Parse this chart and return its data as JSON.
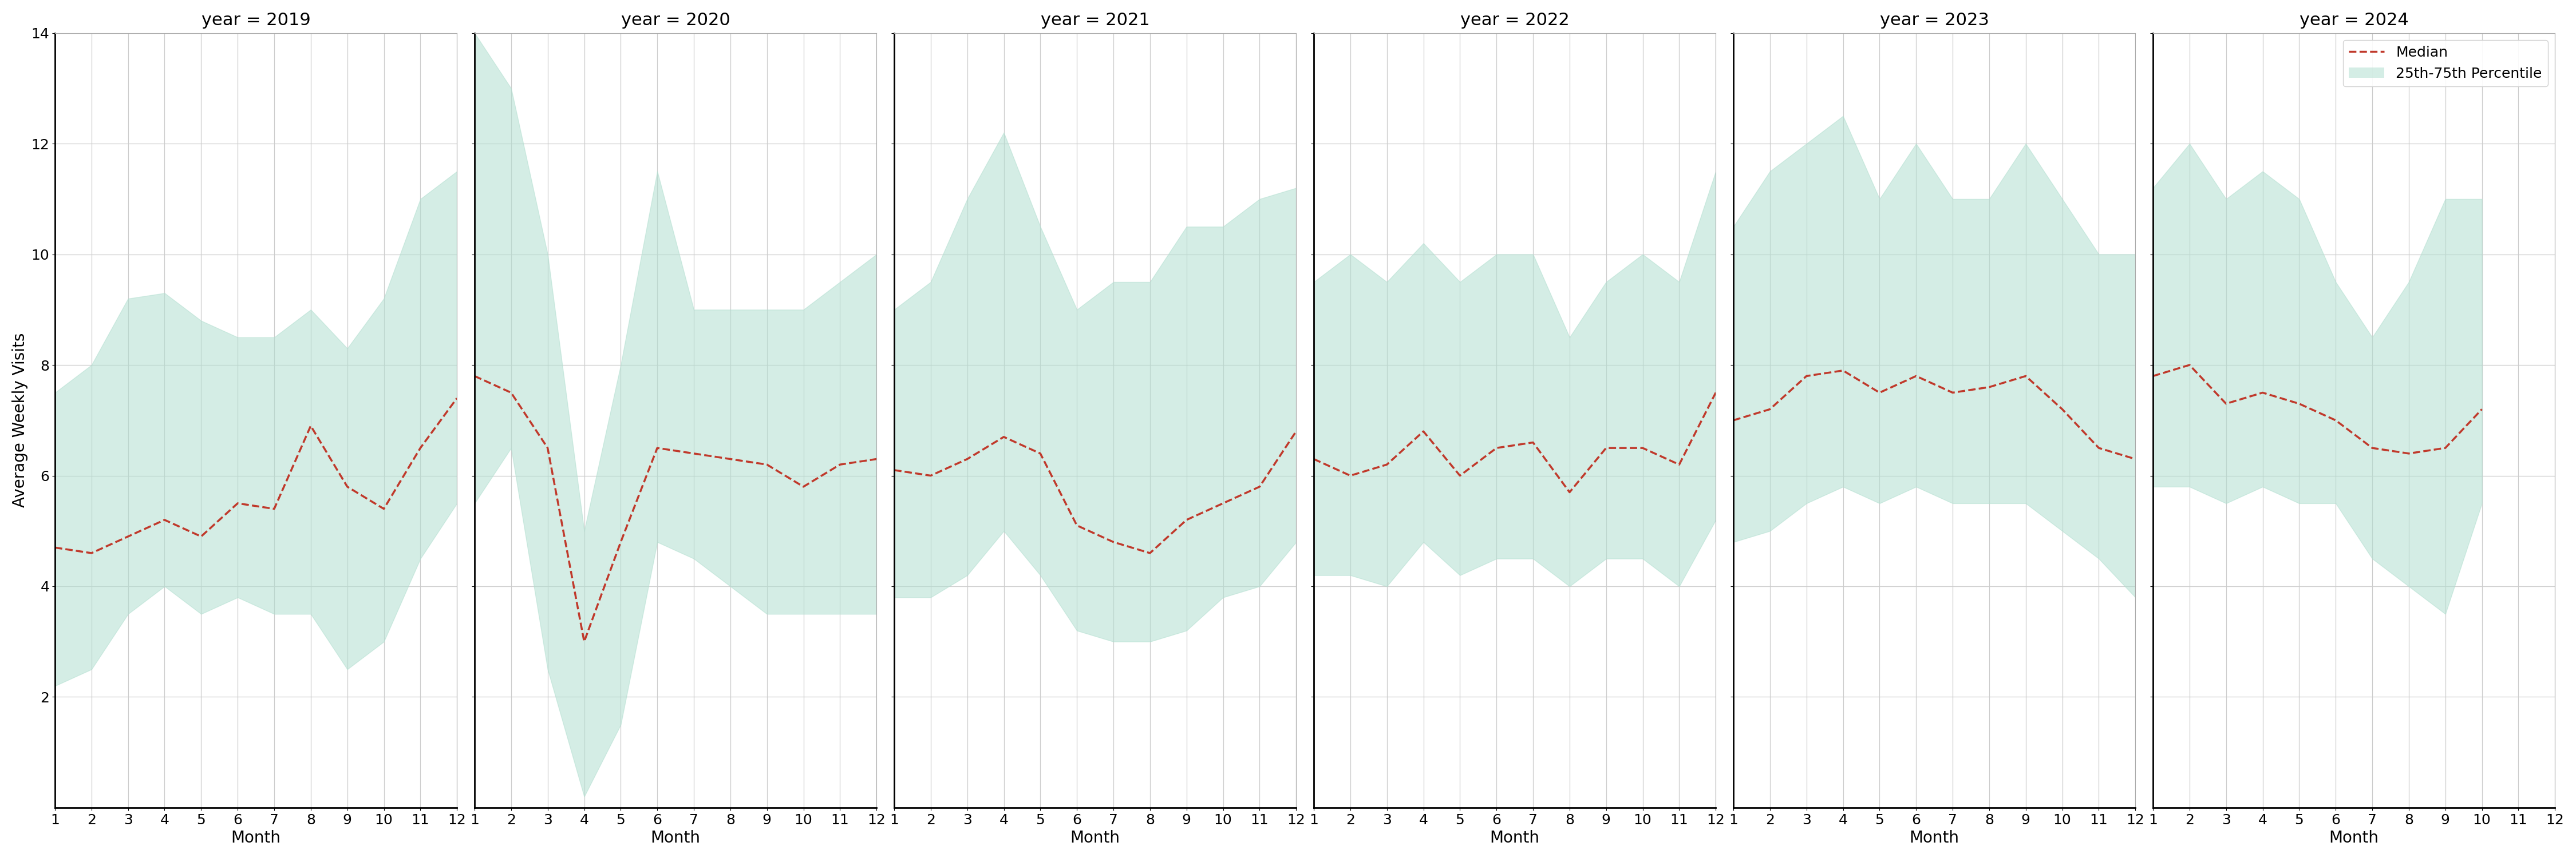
{
  "years": [
    2019,
    2020,
    2021,
    2022,
    2023,
    2024
  ],
  "months": {
    "2019": [
      1,
      2,
      3,
      4,
      5,
      6,
      7,
      8,
      9,
      10,
      11,
      12
    ],
    "2020": [
      1,
      2,
      3,
      4,
      5,
      6,
      7,
      8,
      9,
      10,
      11,
      12
    ],
    "2021": [
      1,
      2,
      3,
      4,
      5,
      6,
      7,
      8,
      9,
      10,
      11,
      12
    ],
    "2022": [
      1,
      2,
      3,
      4,
      5,
      6,
      7,
      8,
      9,
      10,
      11,
      12
    ],
    "2023": [
      1,
      2,
      3,
      4,
      5,
      6,
      7,
      8,
      9,
      10,
      11,
      12
    ],
    "2024": [
      1,
      2,
      3,
      4,
      5,
      6,
      7,
      8,
      9,
      10
    ]
  },
  "median": {
    "2019": [
      4.7,
      4.6,
      4.9,
      5.2,
      4.9,
      5.5,
      5.4,
      6.9,
      5.8,
      5.4,
      6.5,
      7.4
    ],
    "2020": [
      7.8,
      7.5,
      6.5,
      3.0,
      4.8,
      6.5,
      6.4,
      6.3,
      6.2,
      5.8,
      6.2,
      6.3
    ],
    "2021": [
      6.1,
      6.0,
      6.3,
      6.7,
      6.4,
      5.1,
      4.8,
      4.6,
      5.2,
      5.5,
      5.8,
      6.8
    ],
    "2022": [
      6.3,
      6.0,
      6.2,
      6.8,
      6.0,
      6.5,
      6.6,
      5.7,
      6.5,
      6.5,
      6.2,
      7.5
    ],
    "2023": [
      7.0,
      7.2,
      7.8,
      7.9,
      7.5,
      7.8,
      7.5,
      7.6,
      7.8,
      7.2,
      6.5,
      6.3
    ],
    "2024": [
      7.8,
      8.0,
      7.3,
      7.5,
      7.3,
      7.0,
      6.5,
      6.4,
      6.5,
      7.2
    ]
  },
  "p25": {
    "2019": [
      2.2,
      2.5,
      3.5,
      4.0,
      3.5,
      3.8,
      3.5,
      3.5,
      2.5,
      3.0,
      4.5,
      5.5
    ],
    "2020": [
      5.5,
      6.5,
      2.5,
      0.2,
      1.5,
      4.8,
      4.5,
      4.0,
      3.5,
      3.5,
      3.5,
      3.5
    ],
    "2021": [
      3.8,
      3.8,
      4.2,
      5.0,
      4.2,
      3.2,
      3.0,
      3.0,
      3.2,
      3.8,
      4.0,
      4.8
    ],
    "2022": [
      4.2,
      4.2,
      4.0,
      4.8,
      4.2,
      4.5,
      4.5,
      4.0,
      4.5,
      4.5,
      4.0,
      5.2
    ],
    "2023": [
      4.8,
      5.0,
      5.5,
      5.8,
      5.5,
      5.8,
      5.5,
      5.5,
      5.5,
      5.0,
      4.5,
      3.8
    ],
    "2024": [
      5.8,
      5.8,
      5.5,
      5.8,
      5.5,
      5.5,
      4.5,
      4.0,
      3.5,
      5.5
    ]
  },
  "p75": {
    "2019": [
      7.5,
      8.0,
      9.2,
      9.3,
      8.8,
      8.5,
      8.5,
      9.0,
      8.3,
      9.2,
      11.0,
      11.5
    ],
    "2020": [
      14.0,
      13.0,
      10.0,
      5.0,
      8.0,
      11.5,
      9.0,
      9.0,
      9.0,
      9.0,
      9.5,
      10.0
    ],
    "2021": [
      9.0,
      9.5,
      11.0,
      12.2,
      10.5,
      9.0,
      9.5,
      9.5,
      10.5,
      10.5,
      11.0,
      11.2
    ],
    "2022": [
      9.5,
      10.0,
      9.5,
      10.2,
      9.5,
      10.0,
      10.0,
      8.5,
      9.5,
      10.0,
      9.5,
      11.5
    ],
    "2023": [
      10.5,
      11.5,
      12.0,
      12.5,
      11.0,
      12.0,
      11.0,
      11.0,
      12.0,
      11.0,
      10.0,
      10.0
    ],
    "2024": [
      11.2,
      12.0,
      11.0,
      11.5,
      11.0,
      9.5,
      8.5,
      9.5,
      11.0,
      11.0
    ]
  },
  "ylabel": "Average Weekly Visits",
  "xlabel": "Month",
  "ylim": [
    0,
    14
  ],
  "yticks": [
    2,
    4,
    6,
    8,
    10,
    12,
    14
  ],
  "fill_color": "#b2dfd0",
  "fill_alpha": 0.55,
  "line_color": "#c0392b",
  "line_style": "--",
  "line_width": 2.5,
  "grid_color": "#cccccc",
  "background_color": "#ffffff",
  "legend_labels": [
    "Median",
    "25th-75th Percentile"
  ],
  "title_fontsize": 22,
  "label_fontsize": 20,
  "tick_fontsize": 18,
  "legend_fontsize": 18
}
